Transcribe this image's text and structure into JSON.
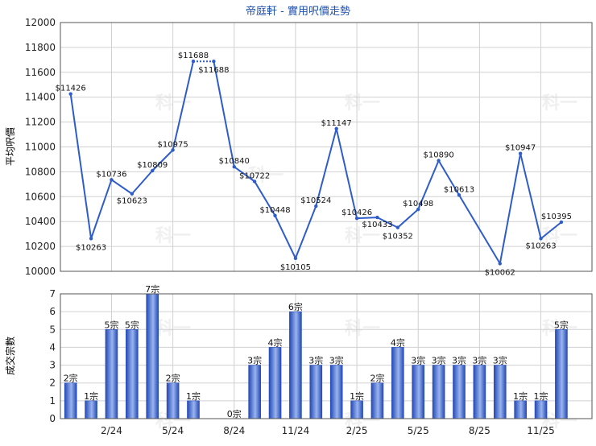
{
  "colors": {
    "line": "#2e5cc9",
    "bar_light": "#9ab4ee",
    "bar_dark": "#2349b6",
    "grid": "#d0d0d0",
    "title": "#1d4fb0",
    "watermark": "#f0f0f0"
  },
  "watermark_text": "科一",
  "chart_data": [
    {
      "type": "line",
      "title": "帝庭軒 - 實用呎價走勢",
      "ylabel": "平均呎價",
      "ylim": [
        10000,
        12000
      ],
      "yticks": [
        10000,
        10200,
        10400,
        10600,
        10800,
        11000,
        11200,
        11400,
        11600,
        11800,
        12000
      ],
      "x_index": [
        0,
        1,
        2,
        3,
        4,
        5,
        6,
        7,
        8,
        9,
        10,
        11,
        12,
        13,
        14,
        15,
        16,
        17,
        18,
        19,
        20,
        21,
        22,
        23,
        24
      ],
      "values": [
        11426,
        10263,
        10736,
        10623,
        10809,
        10975,
        11688,
        11688,
        10840,
        10722,
        10448,
        10105,
        10524,
        11147,
        10426,
        10433,
        10352,
        10498,
        10890,
        10613,
        10062,
        10947,
        10263,
        10395
      ],
      "labels": [
        "$11426",
        "$10263",
        "$10736",
        "$10623",
        "$10809",
        "$10975",
        "$11688",
        "$11688",
        "$10840",
        "$10722",
        "$10448",
        "$10105",
        "$10524",
        "$11147",
        "$10426",
        "$10433",
        "$10352",
        "$10498",
        "$10890",
        "$10613",
        "$10062",
        "$10947",
        "$10263",
        "$10395"
      ],
      "months": [
        0,
        1,
        2,
        3,
        4,
        5,
        6,
        7,
        8,
        9,
        10,
        11,
        12,
        13,
        14,
        15,
        16,
        17,
        18,
        19,
        20,
        21,
        22,
        23,
        24,
        25
      ],
      "points_month": [
        0,
        1,
        2,
        3,
        4,
        5,
        6,
        7,
        8,
        9,
        10,
        11,
        12,
        13,
        14,
        15,
        16,
        17,
        18,
        19,
        21,
        22,
        23,
        24
      ],
      "dashed_segment": [
        6,
        7
      ]
    },
    {
      "type": "bar",
      "ylabel": "成交宗數",
      "ylim": [
        0,
        7
      ],
      "yticks": [
        0,
        1,
        2,
        3,
        4,
        5,
        6,
        7
      ],
      "values": [
        2,
        1,
        5,
        5,
        7,
        2,
        1,
        0,
        3,
        4,
        6,
        3,
        3,
        1,
        2,
        4,
        3,
        3,
        3,
        3,
        3,
        1,
        1,
        5
      ],
      "labels": [
        "2宗",
        "1宗",
        "5宗",
        "5宗",
        "7宗",
        "2宗",
        "1宗",
        "0宗",
        "3宗",
        "4宗",
        "6宗",
        "3宗",
        "3宗",
        "1宗",
        "2宗",
        "4宗",
        "3宗",
        "3宗",
        "3宗",
        "3宗",
        "3宗",
        "1宗",
        "1宗",
        "5宗"
      ],
      "bar_months": [
        0,
        1,
        2,
        3,
        4,
        5,
        6,
        8,
        9,
        10,
        11,
        12,
        13,
        14,
        15,
        16,
        17,
        18,
        19,
        20,
        21,
        22,
        23,
        24
      ],
      "x_tick_labels": [
        "2/24",
        "5/24",
        "8/24",
        "11/24",
        "2/25",
        "5/25",
        "8/25",
        "11/25"
      ],
      "x_tick_months": [
        2,
        5,
        8,
        11,
        14,
        17,
        20,
        23
      ]
    }
  ]
}
